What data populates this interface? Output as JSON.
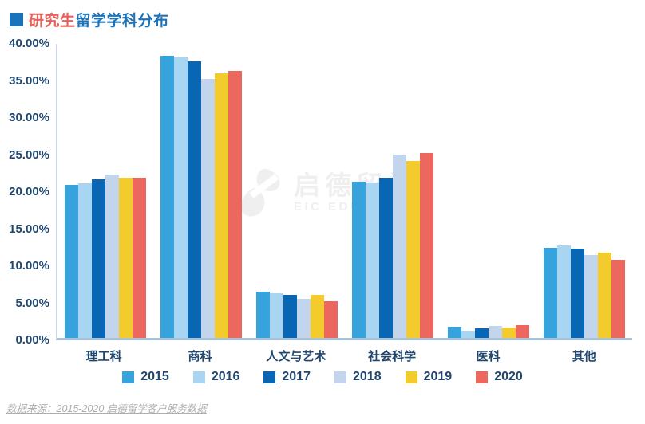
{
  "title": {
    "highlight": "研究生",
    "rest": "留学学科分布"
  },
  "watermark": {
    "logo": "eic-logo",
    "cn": "启德留学",
    "en": "EIC EDUCATION"
  },
  "source": "数据来源：2015-2020 启德留学客户服务数据",
  "colors": {
    "title_accent_red": "#e8615b",
    "title_blue": "#1b74bb",
    "axis_text": "#21476e",
    "axis_line_vertical": "#c9d2e6",
    "axis_line_horizontal": "#a9c2d8",
    "source_text": "#aeaeae",
    "watermark": "#efefef",
    "background": "#ffffff"
  },
  "chart_data": {
    "type": "bar",
    "title": "研究生留学学科分布",
    "categories": [
      "理工科",
      "商科",
      "人文与艺术",
      "社会科学",
      "医科",
      "其他"
    ],
    "series": [
      {
        "name": "2015",
        "color": "#36a3dc",
        "values": [
          20.7,
          38.1,
          6.2,
          21.1,
          1.5,
          12.1
        ]
      },
      {
        "name": "2016",
        "color": "#a8d6f2",
        "values": [
          20.9,
          37.8,
          6.0,
          21.0,
          1.0,
          12.5
        ]
      },
      {
        "name": "2017",
        "color": "#0866b4",
        "values": [
          21.4,
          37.3,
          5.8,
          21.6,
          1.3,
          12.0
        ]
      },
      {
        "name": "2018",
        "color": "#c3d4ed",
        "values": [
          22.0,
          35.0,
          5.3,
          24.7,
          1.6,
          11.2
        ]
      },
      {
        "name": "2019",
        "color": "#f4cb2c",
        "values": [
          21.6,
          35.7,
          5.8,
          23.9,
          1.4,
          11.5
        ]
      },
      {
        "name": "2020",
        "color": "#ec675e",
        "values": [
          21.6,
          36.0,
          5.0,
          24.9,
          1.7,
          10.5
        ]
      }
    ],
    "xlabel": "",
    "ylabel": "",
    "ylim": [
      0,
      40
    ],
    "yticks": [
      "0.00%",
      "5.00%",
      "10.00%",
      "15.00%",
      "20.00%",
      "25.00%",
      "30.00%",
      "35.00%",
      "40.00%"
    ],
    "grid": false,
    "legend_position": "bottom"
  }
}
